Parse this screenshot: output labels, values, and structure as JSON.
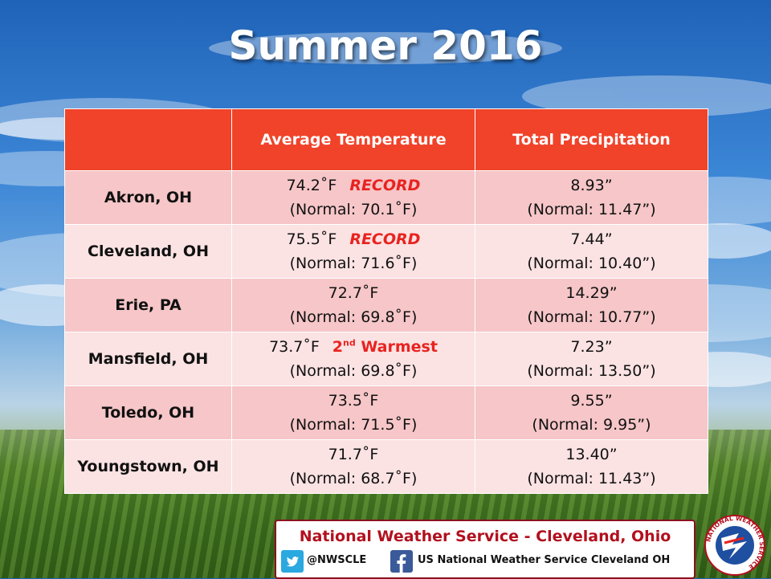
{
  "title": "Summer 2016",
  "table": {
    "headers": [
      "",
      "Average Temperature",
      "Total Precipitation"
    ],
    "rows": [
      {
        "city": "Akron, OH",
        "temp": "74.2˚F",
        "temp_note": "RECORD",
        "temp_normal": "(Normal: 70.1˚F)",
        "precip": "8.93”",
        "precip_normal": "(Normal: 11.47”)"
      },
      {
        "city": "Cleveland, OH",
        "temp": "75.5˚F",
        "temp_note": "RECORD",
        "temp_normal": "(Normal: 71.6˚F)",
        "precip": "7.44”",
        "precip_normal": "(Normal: 10.40”)"
      },
      {
        "city": "Erie, PA",
        "temp": "72.7˚F",
        "temp_note": "",
        "temp_normal": "(Normal: 69.8˚F)",
        "precip": "14.29”",
        "precip_normal": "(Normal: 10.77”)"
      },
      {
        "city": "Mansfield, OH",
        "temp": "73.7˚F",
        "temp_note_num": "2",
        "temp_note_sup": "nd",
        "temp_note_word": "Warmest",
        "temp_normal": "(Normal: 69.8˚F)",
        "precip": "7.23”",
        "precip_normal": "(Normal: 13.50”)"
      },
      {
        "city": "Toledo, OH",
        "temp": "73.5˚F",
        "temp_note": "",
        "temp_normal": "(Normal: 71.5˚F)",
        "precip": "9.55”",
        "precip_normal": "(Normal: 9.95”)"
      },
      {
        "city": "Youngstown, OH",
        "temp": "71.7˚F",
        "temp_note": "",
        "temp_normal": "(Normal: 68.7˚F)",
        "precip": "13.40”",
        "precip_normal": "(Normal: 11.43”)"
      }
    ]
  },
  "footer": {
    "title": "National Weather Service - Cleveland, Ohio",
    "twitter": "@NWSCLE",
    "facebook": "US National Weather Service Cleveland OH",
    "twitter_icon": "twitter-icon",
    "facebook_icon": "facebook-icon",
    "seal_text": "NATIONAL WEATHER SERVICE"
  },
  "colors": {
    "header_bg": "#f0432a",
    "record_red": "#e8231f",
    "row_odd": "#f6c6c8",
    "row_even": "#fbe2e3"
  }
}
